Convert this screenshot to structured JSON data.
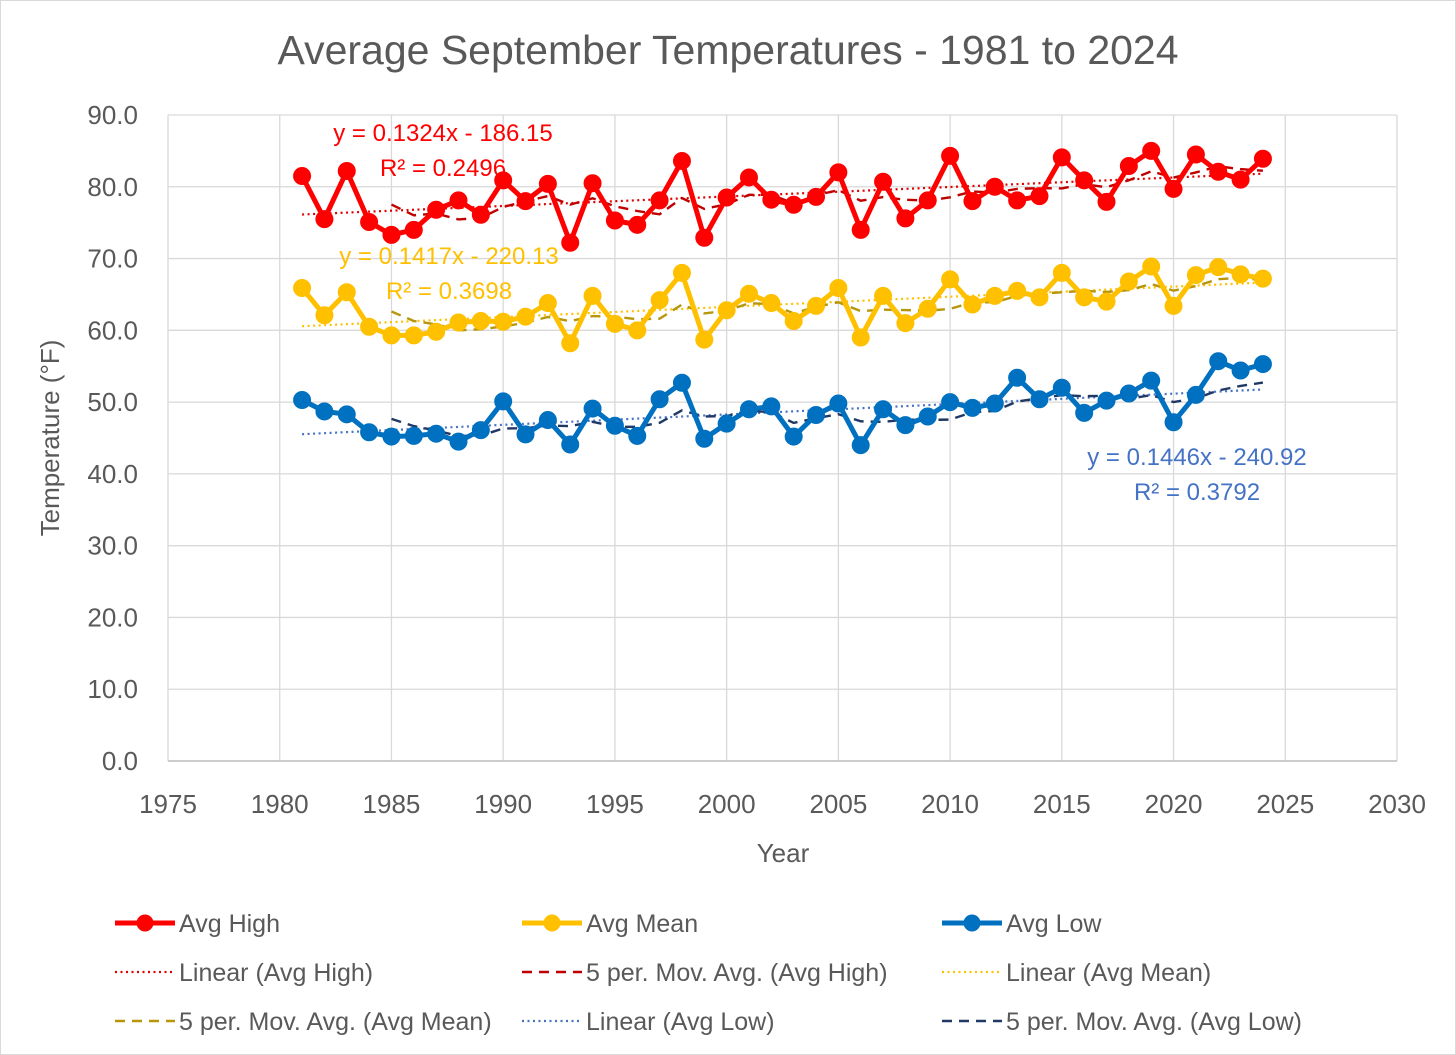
{
  "chart_data": {
    "type": "line",
    "title": "Average September Temperatures - 1981 to 2024",
    "xlabel": "Year",
    "ylabel": "Temperature (°F)",
    "xlim": [
      1975,
      2030
    ],
    "ylim": [
      0,
      90
    ],
    "xticks": [
      1975,
      1980,
      1985,
      1990,
      1995,
      2000,
      2005,
      2010,
      2015,
      2020,
      2025,
      2030
    ],
    "yticks": [
      "0.0",
      "10.0",
      "20.0",
      "30.0",
      "40.0",
      "50.0",
      "60.0",
      "70.0",
      "80.0",
      "90.0"
    ],
    "grid": true,
    "legend_position": "bottom",
    "x": [
      1981,
      1982,
      1983,
      1984,
      1985,
      1986,
      1987,
      1988,
      1989,
      1990,
      1991,
      1992,
      1993,
      1994,
      1995,
      1996,
      1997,
      1998,
      1999,
      2000,
      2001,
      2002,
      2003,
      2004,
      2005,
      2006,
      2007,
      2008,
      2009,
      2010,
      2011,
      2012,
      2013,
      2014,
      2015,
      2016,
      2017,
      2018,
      2019,
      2020,
      2021,
      2022,
      2023,
      2024
    ],
    "series": [
      {
        "name": "Avg High",
        "color": "#ff0000",
        "trend_color": "#e00000",
        "mov_color": "#c00000",
        "values": [
          81.5,
          75.5,
          82.2,
          75.1,
          73.3,
          74.0,
          76.8,
          78.1,
          76.1,
          80.9,
          78.0,
          80.4,
          72.2,
          80.5,
          75.3,
          74.7,
          78.1,
          83.6,
          72.9,
          78.5,
          81.3,
          78.2,
          77.5,
          78.6,
          82.0,
          74.0,
          80.7,
          75.6,
          78.1,
          84.3,
          78.0,
          80.0,
          78.1,
          78.7,
          84.1,
          80.9,
          77.9,
          82.9,
          85.0,
          79.7,
          84.5,
          82.1,
          81.0,
          83.9
        ],
        "trend": {
          "slope": 0.1324,
          "intercept": -186.15
        },
        "equation": "y = 0.1324x - 186.15",
        "r2": "R² = 0.2496"
      },
      {
        "name": "Avg Mean",
        "color": "#ffc000",
        "trend_color": "#ffc000",
        "mov_color": "#b8960c",
        "values": [
          65.9,
          62.1,
          65.3,
          60.5,
          59.3,
          59.3,
          59.8,
          61.1,
          61.3,
          61.2,
          61.9,
          63.8,
          58.2,
          64.8,
          60.9,
          60.0,
          64.2,
          68.0,
          58.7,
          62.8,
          65.1,
          63.8,
          61.3,
          63.4,
          65.9,
          59.0,
          64.8,
          61.0,
          63.0,
          67.1,
          63.6,
          64.8,
          65.5,
          64.6,
          68.0,
          64.6,
          64.0,
          66.8,
          68.9,
          63.4,
          67.7,
          68.8,
          67.8,
          67.2
        ],
        "trend": {
          "slope": 0.1417,
          "intercept": -220.13
        },
        "equation": "y = 0.1417x - 220.13",
        "r2": "R² = 0.3698"
      },
      {
        "name": "Avg Low",
        "color": "#0070c0",
        "trend_color": "#4472c4",
        "mov_color": "#1f3864",
        "values": [
          50.3,
          48.7,
          48.3,
          45.8,
          45.2,
          45.3,
          45.6,
          44.5,
          46.1,
          50.1,
          45.5,
          47.5,
          44.1,
          49.1,
          46.7,
          45.3,
          50.4,
          52.7,
          44.9,
          47.0,
          49.0,
          49.4,
          45.2,
          48.2,
          49.8,
          44.0,
          49.0,
          46.8,
          48.0,
          50.0,
          49.2,
          49.8,
          53.4,
          50.4,
          52.0,
          48.5,
          50.2,
          51.2,
          53.0,
          47.2,
          51.0,
          55.7,
          54.4,
          55.3
        ],
        "trend": {
          "slope": 0.1446,
          "intercept": -240.92
        },
        "equation": "y = 0.1446x - 240.92",
        "r2": "R² = 0.3792"
      }
    ],
    "moving_average_period": 5,
    "legend": [
      {
        "label": "Avg High",
        "style": "marker",
        "color": "#ff0000"
      },
      {
        "label": "Avg Mean",
        "style": "marker",
        "color": "#ffc000"
      },
      {
        "label": "Avg Low",
        "style": "marker",
        "color": "#0070c0"
      },
      {
        "label": "Linear (Avg High)",
        "style": "dotted",
        "color": "#e00000"
      },
      {
        "label": "5 per. Mov. Avg. (Avg High)",
        "style": "dashed",
        "color": "#c00000"
      },
      {
        "label": "Linear (Avg Mean)",
        "style": "dotted",
        "color": "#ffc000"
      },
      {
        "label": "5 per. Mov. Avg. (Avg Mean)",
        "style": "dashed",
        "color": "#b8960c"
      },
      {
        "label": "Linear (Avg Low)",
        "style": "dotted",
        "color": "#4472c4"
      },
      {
        "label": "5 per. Mov. Avg. (Avg Low)",
        "style": "dashed",
        "color": "#1f3864"
      }
    ]
  }
}
